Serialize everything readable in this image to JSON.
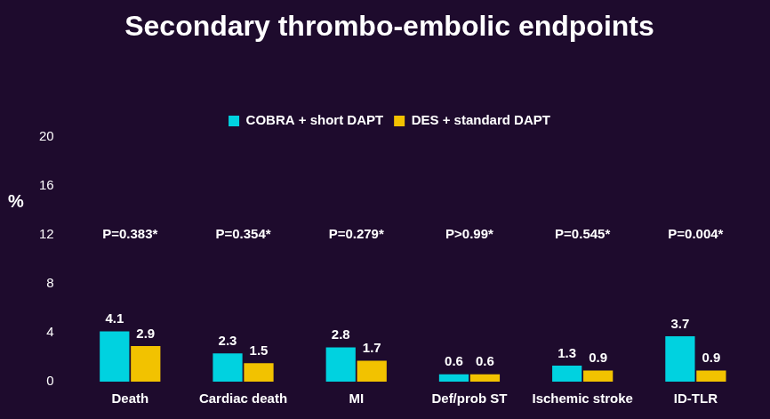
{
  "chart_data": {
    "type": "bar",
    "title": "Secondary thrombo-embolic endpoints",
    "y_label": "%",
    "categories": [
      "Death",
      "Cardiac death",
      "MI",
      "Def/prob ST",
      "Ischemic stroke",
      "ID-TLR"
    ],
    "series": [
      {
        "name": "COBRA + short DAPT",
        "color": "#00d2e0",
        "values": [
          4.1,
          2.3,
          2.8,
          0.6,
          1.3,
          3.7
        ]
      },
      {
        "name": "DES + standard DAPT",
        "color": "#f2c200",
        "values": [
          2.9,
          1.5,
          1.7,
          0.6,
          0.9,
          0.9
        ]
      }
    ],
    "annotations": [
      "P=0.383*",
      "P=0.354*",
      "P=0.279*",
      "P>0.99*",
      "P=0.545*",
      "P=0.004*"
    ],
    "ylim": [
      0,
      20
    ],
    "yticks": [
      0,
      4,
      8,
      12,
      16,
      20
    ],
    "grid": false,
    "legend": "top",
    "data_labels": true
  }
}
